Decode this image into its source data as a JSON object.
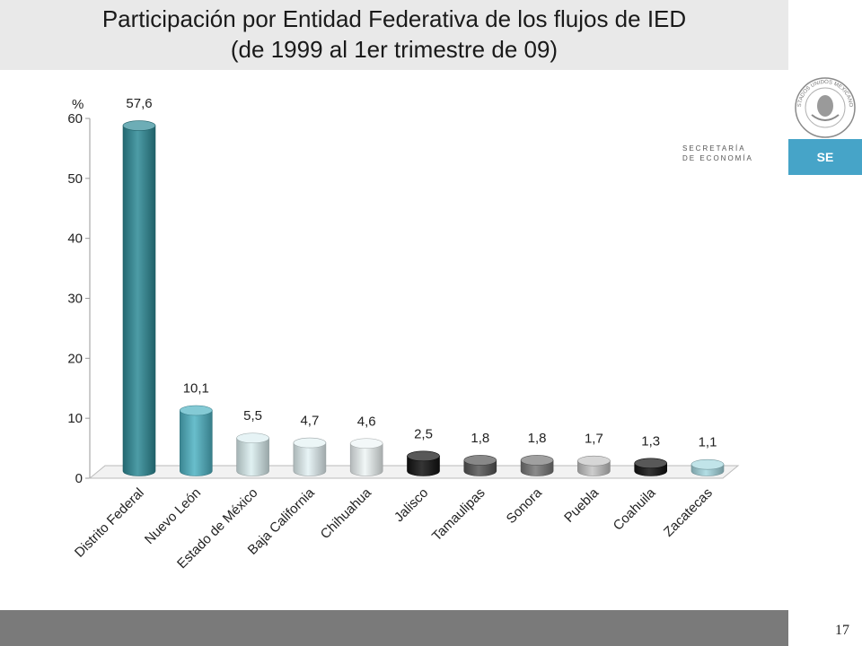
{
  "slide": {
    "title_line_1": "Participación por Entidad Federativa de los flujos de IED",
    "title_line_2": "(de 1999 al 1er trimestre de 09)",
    "agency_line_1": "SECRETARÍA",
    "agency_line_2": "DE ECONOMÍA",
    "agency_badge": "SE",
    "seal_text": "ESTADOS UNIDOS MEXICANOS",
    "page_number": "17"
  },
  "chart_data": {
    "type": "bar",
    "title": "Participación por Entidad Federativa de los flujos de IED (de 1999 al 1er trimestre de 09)",
    "ylabel": "%",
    "xlabel": "",
    "ylim": [
      0,
      60
    ],
    "yticks": [
      0,
      10,
      20,
      30,
      40,
      50,
      60
    ],
    "categories": [
      "Distrito Federal",
      "Nuevo León",
      "Estado de México",
      "Baja California",
      "Chihuahua",
      "Jalisco",
      "Tamaulipas",
      "Sonora",
      "Puebla",
      "Coahuila",
      "Zacatecas"
    ],
    "values": [
      57.6,
      10.1,
      5.5,
      4.7,
      4.6,
      2.5,
      1.8,
      1.8,
      1.7,
      1.3,
      1.1
    ],
    "data_labels": [
      "57,6",
      "10,1",
      "5,5",
      "4,7",
      "4,6",
      "2,5",
      "1,8",
      "1,8",
      "1,7",
      "1,3",
      "1,1"
    ],
    "colors": [
      "#2e8a96",
      "#4fb3c3",
      "#dbeef0",
      "#e4f2f4",
      "#eef5f6",
      "#111111",
      "#555555",
      "#777777",
      "#c4c4c4",
      "#111111",
      "#a6d8e0"
    ],
    "grid": false,
    "legend": "none"
  }
}
